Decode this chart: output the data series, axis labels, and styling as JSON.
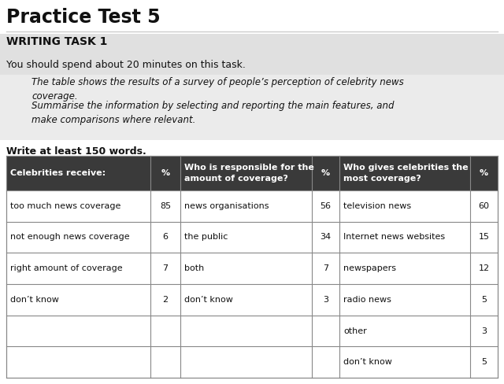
{
  "title": "Practice Test 5",
  "section_label": "WRITING TASK 1",
  "instruction": "You should spend about 20 minutes on this task.",
  "italic_text_1": "The table shows the results of a survey of people’s perception of celebrity news\ncoverage.",
  "italic_text_2": "Summarise the information by selecting and reporting the main features, and\nmake comparisons where relevant.",
  "word_count": "Write at least 150 words.",
  "header_bg": "#3a3a3a",
  "header_text_color": "#ffffff",
  "col1_header": "Celebrities receive:",
  "col2_header": "%",
  "col3_header": "Who is responsible for the\namount of coverage?",
  "col4_header": "%",
  "col5_header": "Who gives celebrities the\nmost coverage?",
  "col6_header": "%",
  "col1_data": [
    "too much news coverage",
    "not enough news coverage",
    "right amount of coverage",
    "don’t know",
    "",
    ""
  ],
  "col2_data": [
    "85",
    "6",
    "7",
    "2",
    "",
    ""
  ],
  "col3_data": [
    "news organisations",
    "the public",
    "both",
    "don’t know",
    "",
    ""
  ],
  "col4_data": [
    "56",
    "34",
    "7",
    "3",
    "",
    ""
  ],
  "col5_data": [
    "television news",
    "Internet news websites",
    "newspapers",
    "radio news",
    "other",
    "don’t know"
  ],
  "col6_data": [
    "60",
    "15",
    "12",
    "5",
    "3",
    "5"
  ],
  "bg_color": "#ffffff",
  "table_bg": "#ffffff",
  "noise_bg": "#d8d8d8",
  "border_color": "#888888",
  "title_size": 17,
  "section_size": 10,
  "instruction_size": 9,
  "italic_size": 8.5,
  "wordcount_size": 9,
  "table_header_size": 8,
  "table_data_size": 8
}
